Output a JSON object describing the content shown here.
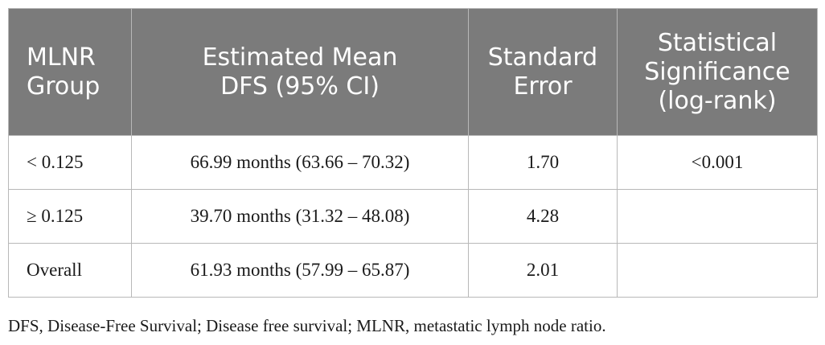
{
  "table": {
    "headers": [
      [
        "MLNR",
        "Group"
      ],
      [
        "Estimated Mean",
        "DFS (95% CI)"
      ],
      [
        "Standard",
        "Error"
      ],
      [
        "Statistical",
        "Significance",
        "(log-rank)"
      ]
    ],
    "rows": [
      [
        "< 0.125",
        "66.99 months (63.66 – 70.32)",
        "1.70",
        "<0.001"
      ],
      [
        "≥ 0.125",
        "39.70 months (31.32 – 48.08)",
        "4.28",
        ""
      ],
      [
        "Overall",
        "61.93 months (57.99 – 65.87)",
        "2.01",
        ""
      ]
    ]
  },
  "footnote": "DFS, Disease-Free Survival; Disease free survival; MLNR, metastatic lymph node ratio."
}
